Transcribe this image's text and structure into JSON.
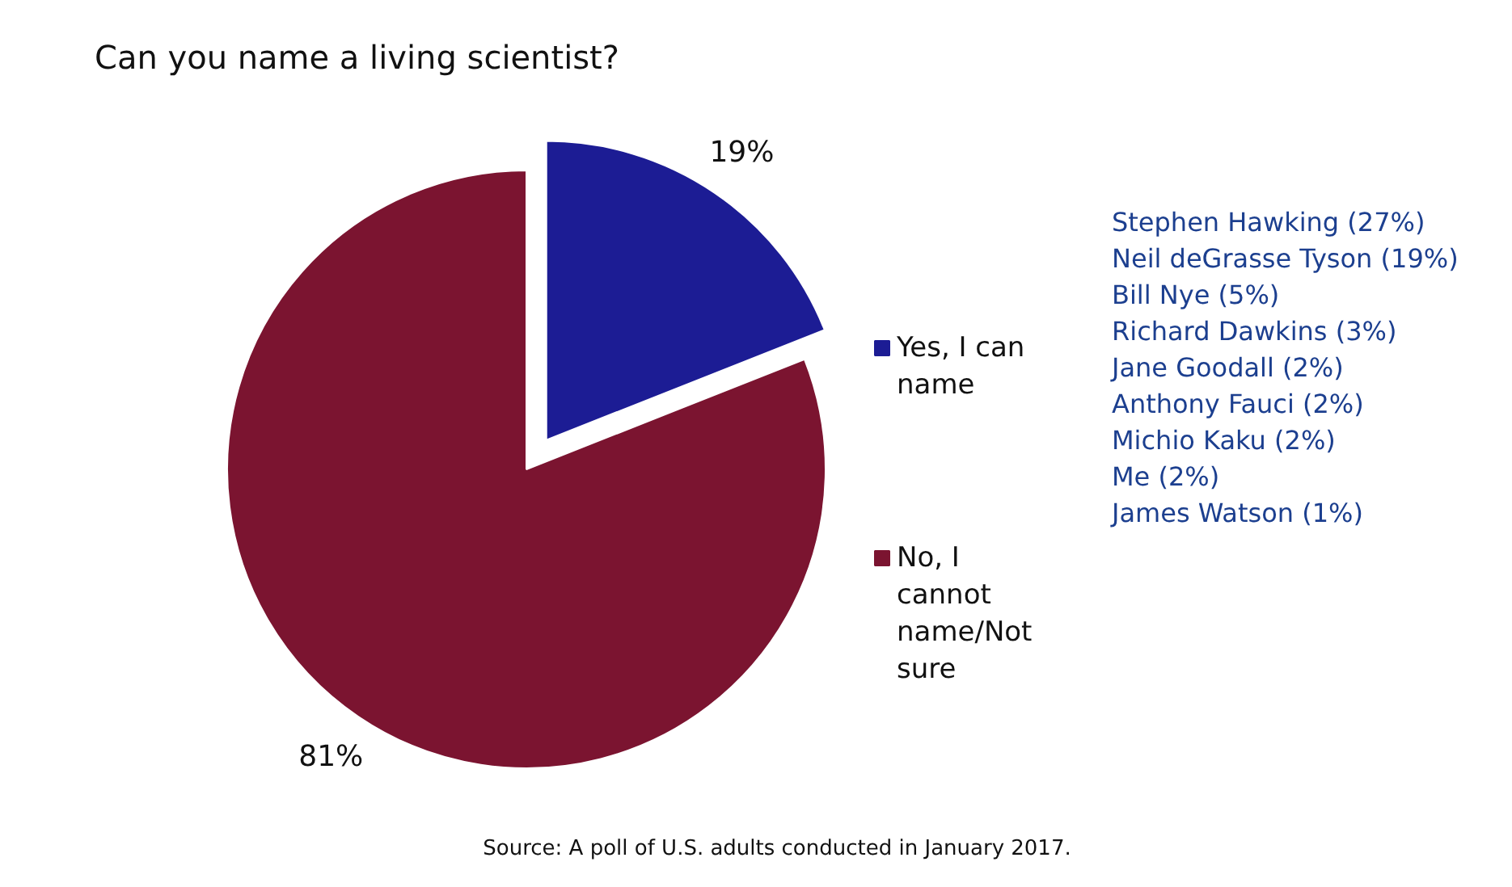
{
  "chart_data": {
    "type": "pie",
    "title": "Can you name a living scientist?",
    "categories": [
      "Yes, I can name",
      "No, I cannot name/Not sure"
    ],
    "values": [
      19,
      81
    ],
    "colors": [
      "#1c1c94",
      "#7b1430"
    ],
    "value_labels": [
      "19%",
      "81%"
    ],
    "legend": "right",
    "annotations": [
      "Stephen Hawking (27%)",
      "Neil deGrasse Tyson (19%)",
      "Bill Nye (5%)",
      "Richard Dawkins (3%)",
      "Jane Goodall (2%)",
      "Anthony Fauci (2%)",
      "Michio Kaku (2%)",
      "Me (2%)",
      "James Watson (1%)",
      "Source: A poll of U.S. adults conducted in January 2017."
    ]
  }
}
